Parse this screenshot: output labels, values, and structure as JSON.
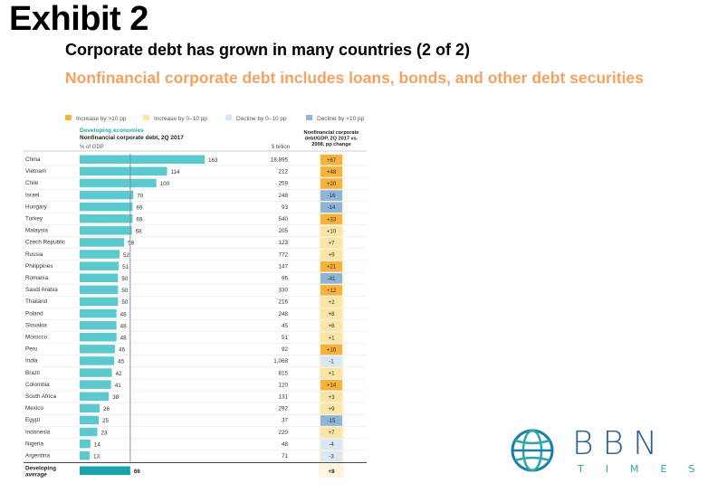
{
  "header": {
    "exhibit": "Exhibit 2",
    "title": "Corporate debt has grown in many countries (2 of 2)",
    "subtitle": "Nonfinancial corporate debt includes loans, bonds, and other debt securities"
  },
  "colors": {
    "bar": "#5cc9cf",
    "avg_bar": "#1aa3a8",
    "inc_big": "#f7b23b",
    "inc_small": "#fbe5a4",
    "dec_small": "#d9e8f2",
    "dec_big": "#8db5d9",
    "subtitle": "#f4a261",
    "section": "#2aa7a8"
  },
  "legend": [
    {
      "label": "Increase by >10 pp",
      "key": "inc_big"
    },
    {
      "label": "Increase by 0–10 pp",
      "key": "inc_small"
    },
    {
      "label": "Decline by 0–10 pp",
      "key": "dec_small"
    },
    {
      "label": "Decline by >10 pp",
      "key": "dec_big"
    }
  ],
  "chart_data": {
    "type": "bar",
    "section_label": "Developing economies",
    "title": "Nonfinancial corporate debt, 2Q 2017",
    "unit_label": "% of GDP",
    "billion_header": "$ billion",
    "change_header": "Nonfinancial corporate debt/GDP, 2Q 2017 vs. 2008, pp change",
    "categories": [
      "China",
      "Vietnam",
      "Chile",
      "Israel",
      "Hungary",
      "Turkey",
      "Malaysia",
      "Czech Republic",
      "Russia",
      "Philippines",
      "Romania",
      "Saudi Arabia",
      "Thailand",
      "Poland",
      "Slovakia",
      "Morocco",
      "Peru",
      "India",
      "Brazil",
      "Colombia",
      "South Africa",
      "Mexico",
      "Egypt",
      "Indonesia",
      "Nigeria",
      "Argentina"
    ],
    "values": [
      163,
      114,
      100,
      70,
      69,
      69,
      68,
      58,
      52,
      51,
      50,
      50,
      50,
      48,
      48,
      48,
      46,
      45,
      42,
      41,
      38,
      26,
      25,
      23,
      14,
      13
    ],
    "billions": [
      "18,895",
      "212",
      "259",
      "248",
      "93",
      "540",
      "205",
      "123",
      "772",
      "147",
      "96",
      "330",
      "216",
      "248",
      "45",
      "51",
      "92",
      "1,068",
      "815",
      "120",
      "131",
      "292",
      "37",
      "220",
      "48",
      "71"
    ],
    "changes": [
      "+67",
      "+48",
      "+20",
      "-16",
      "-14",
      "+33",
      "+10",
      "+7",
      "+9",
      "+21",
      "-41",
      "+12",
      "+2",
      "+8",
      "+6",
      "+1",
      "+16",
      "-1",
      "+1",
      "+14",
      "+3",
      "+9",
      "-15",
      "+7",
      "-4",
      "-3"
    ],
    "average": {
      "label": "Developing average",
      "value": 66,
      "change": "+8"
    },
    "xlim": [
      0,
      180
    ]
  },
  "logo": {
    "text": "BBN",
    "subtext": "TIMES"
  }
}
